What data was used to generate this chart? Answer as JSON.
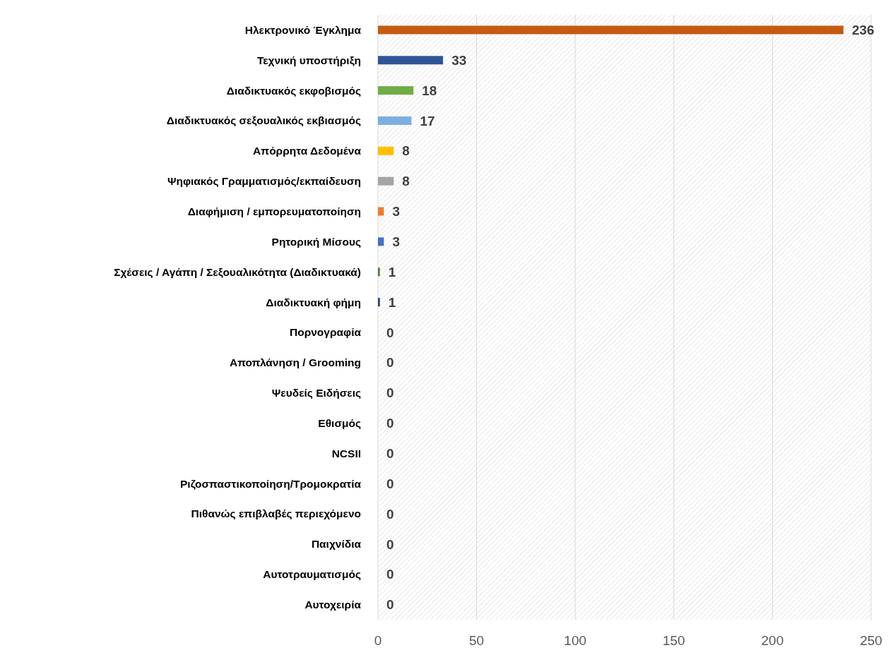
{
  "chart_data": {
    "type": "bar",
    "orientation": "horizontal",
    "categories": [
      "Ηλεκτρονικό Έγκλημα",
      "Τεχνική υποστήριξη",
      "Διαδικτυακός εκφοβισμός",
      "Διαδικτυακός σεξουαλικός εκβιασμός",
      "Απόρρητα Δεδομένα",
      "Ψηφιακός Γραμματισμός/εκπαίδευση",
      "Διαφήμιση / εμπορευματοποίηση",
      "Ρητορική Μίσους",
      "Σχέσεις / Αγάπη / Σεξουαλικότητα (Διαδικτυακά)",
      "Διαδικτυακή φήμη",
      "Πορνογραφία",
      "Αποπλάνηση / Grooming",
      "Ψευδείς Ειδήσεις",
      "Εθισμός",
      "NCSII",
      "Ριζοσπαστικοποίηση/Τρομοκρατία",
      "Πιθανώς επιβλαβές περιεχόμενο",
      "Παιχνίδια",
      "Αυτοτραυματισμός",
      "Αυτοχειρία"
    ],
    "values": [
      236,
      33,
      18,
      17,
      8,
      8,
      3,
      3,
      1,
      1,
      0,
      0,
      0,
      0,
      0,
      0,
      0,
      0,
      0,
      0
    ],
    "colors": [
      "#c55a11",
      "#2f5597",
      "#70ad47",
      "#7cafe0",
      "#ffc000",
      "#a5a5a5",
      "#ed7d31",
      "#4472c4",
      "#548235",
      "#264478",
      "#9e480e",
      "#636363",
      "#997300",
      "#255e91",
      "#43682b",
      "#698ed0",
      "#f1975a",
      "#b7b7b7",
      "#ffcd33",
      "#5b9bd5"
    ],
    "xlim": [
      0,
      250
    ],
    "xticks": [
      0,
      50,
      100,
      150,
      200,
      250
    ],
    "grid": "x",
    "data_labels": true
  }
}
